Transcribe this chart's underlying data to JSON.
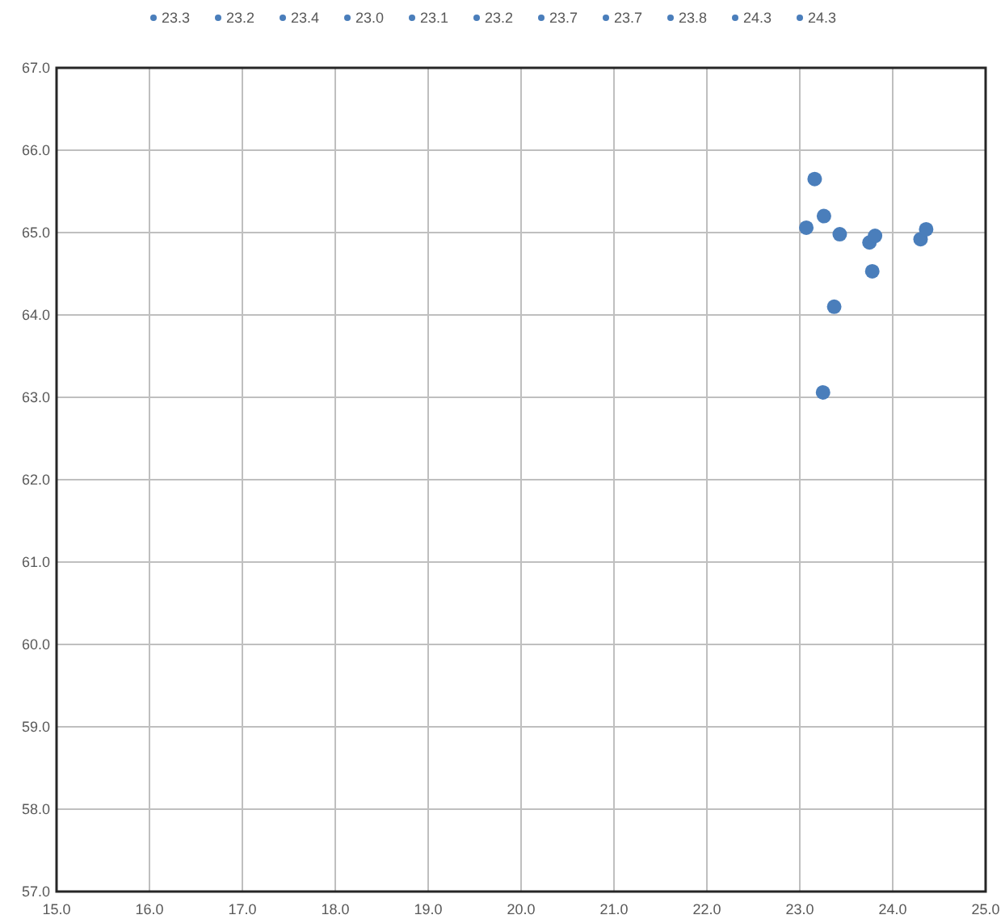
{
  "chart_data": {
    "type": "scatter",
    "legend": "top",
    "grid": true,
    "marker": "circle",
    "xlim": [
      15,
      25
    ],
    "xticks": [
      {
        "value": 15,
        "label": "15.0"
      },
      {
        "value": 16,
        "label": "16.0"
      },
      {
        "value": 17,
        "label": "17.0"
      },
      {
        "value": 18,
        "label": "18.0"
      },
      {
        "value": 19,
        "label": "19.0"
      },
      {
        "value": 20,
        "label": "20.0"
      },
      {
        "value": 21,
        "label": "21.0"
      },
      {
        "value": 22,
        "label": "22.0"
      },
      {
        "value": 23,
        "label": "23.0"
      },
      {
        "value": 24,
        "label": "24.0"
      },
      {
        "value": 25,
        "label": "25.0"
      }
    ],
    "ylim": [
      57,
      67
    ],
    "yticks": [
      {
        "value": 57,
        "label": "57.0"
      },
      {
        "value": 58,
        "label": "58.0"
      },
      {
        "value": 59,
        "label": "59.0"
      },
      {
        "value": 60,
        "label": "60.0"
      },
      {
        "value": 61,
        "label": "61.0"
      },
      {
        "value": 62,
        "label": "62.0"
      },
      {
        "value": 63,
        "label": "63.0"
      },
      {
        "value": 64,
        "label": "64.0"
      },
      {
        "value": 65,
        "label": "65.0"
      },
      {
        "value": 66,
        "label": "66.0"
      },
      {
        "value": 67,
        "label": "67.0"
      }
    ],
    "series": [
      {
        "name": "23.3",
        "color": "#4a7ebb",
        "x": [
          23.37
        ],
        "values": [
          64.1
        ]
      },
      {
        "name": "23.2",
        "color": "#4a7ebb",
        "x": [
          23.26
        ],
        "values": [
          65.2
        ]
      },
      {
        "name": "23.4",
        "color": "#4a7ebb",
        "x": [
          23.43
        ],
        "values": [
          64.98
        ]
      },
      {
        "name": "23.0",
        "color": "#4a7ebb",
        "x": [
          23.07
        ],
        "values": [
          65.06
        ]
      },
      {
        "name": "23.1",
        "color": "#4a7ebb",
        "x": [
          23.16
        ],
        "values": [
          65.65
        ]
      },
      {
        "name": "23.2",
        "color": "#4a7ebb",
        "x": [
          23.25
        ],
        "values": [
          63.06
        ]
      },
      {
        "name": "23.7",
        "color": "#4a7ebb",
        "x": [
          23.75
        ],
        "values": [
          64.88
        ]
      },
      {
        "name": "23.7",
        "color": "#4a7ebb",
        "x": [
          23.78
        ],
        "values": [
          64.53
        ]
      },
      {
        "name": "23.8",
        "color": "#4a7ebb",
        "x": [
          23.81
        ],
        "values": [
          64.96
        ]
      },
      {
        "name": "24.3",
        "color": "#4a7ebb",
        "x": [
          24.3
        ],
        "values": [
          64.92
        ]
      },
      {
        "name": "24.3",
        "color": "#4a7ebb",
        "x": [
          24.36
        ],
        "values": [
          65.04
        ]
      }
    ]
  }
}
